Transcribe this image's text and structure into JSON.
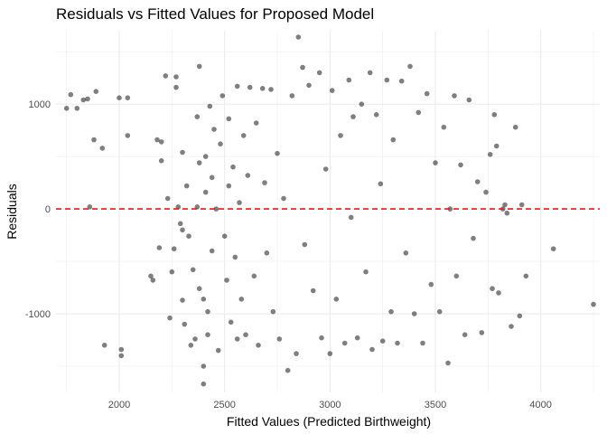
{
  "chart_data": {
    "type": "scatter",
    "title": "Residuals vs Fitted Values for Proposed Model",
    "xlabel": "Fitted Values (Predicted Birthweight)",
    "ylabel": "Residuals",
    "xlim": [
      1700,
      4280
    ],
    "ylim": [
      -1750,
      1700
    ],
    "x_major_ticks": [
      2000,
      2500,
      3000,
      3500,
      4000
    ],
    "x_tick_labels": [
      "2000",
      "2500",
      "3000",
      "3500",
      "4000"
    ],
    "y_major_ticks": [
      -1000,
      0,
      1000
    ],
    "y_tick_labels": [
      "-1000",
      "0",
      "1000"
    ],
    "grid": true,
    "reference_line": {
      "y": 0,
      "style": "dashed",
      "color": "#e41a1c"
    },
    "point_color": "#000000",
    "point_opacity": 0.5,
    "series": [
      {
        "points": [
          [
            1750,
            960
          ],
          [
            1770,
            1090
          ],
          [
            1800,
            960
          ],
          [
            1830,
            1040
          ],
          [
            1850,
            1050
          ],
          [
            1860,
            20
          ],
          [
            1880,
            660
          ],
          [
            1890,
            1120
          ],
          [
            1920,
            580
          ],
          [
            1930,
            -1300
          ],
          [
            2000,
            1060
          ],
          [
            2010,
            -1400
          ],
          [
            2010,
            -1340
          ],
          [
            2040,
            1060
          ],
          [
            2040,
            700
          ],
          [
            2150,
            -640
          ],
          [
            2160,
            -680
          ],
          [
            2180,
            660
          ],
          [
            2190,
            -370
          ],
          [
            2200,
            460
          ],
          [
            2200,
            640
          ],
          [
            2220,
            1270
          ],
          [
            2230,
            100
          ],
          [
            2240,
            -1040
          ],
          [
            2250,
            -600
          ],
          [
            2260,
            -380
          ],
          [
            2270,
            1160
          ],
          [
            2270,
            1260
          ],
          [
            2280,
            20
          ],
          [
            2290,
            -140
          ],
          [
            2300,
            -870
          ],
          [
            2300,
            -200
          ],
          [
            2300,
            540
          ],
          [
            2310,
            -1100
          ],
          [
            2320,
            220
          ],
          [
            2330,
            -260
          ],
          [
            2340,
            -1300
          ],
          [
            2350,
            -580
          ],
          [
            2360,
            -1240
          ],
          [
            2370,
            20
          ],
          [
            2370,
            880
          ],
          [
            2380,
            1360
          ],
          [
            2380,
            -760
          ],
          [
            2380,
            440
          ],
          [
            2400,
            -1670
          ],
          [
            2400,
            -860
          ],
          [
            2400,
            -1500
          ],
          [
            2410,
            160
          ],
          [
            2410,
            500
          ],
          [
            2420,
            -1200
          ],
          [
            2420,
            -980
          ],
          [
            2430,
            980
          ],
          [
            2440,
            300
          ],
          [
            2440,
            -400
          ],
          [
            2450,
            760
          ],
          [
            2460,
            0
          ],
          [
            2470,
            -1350
          ],
          [
            2480,
            620
          ],
          [
            2490,
            1080
          ],
          [
            2500,
            -260
          ],
          [
            2510,
            -680
          ],
          [
            2520,
            860
          ],
          [
            2520,
            220
          ],
          [
            2530,
            -1080
          ],
          [
            2540,
            400
          ],
          [
            2550,
            -460
          ],
          [
            2560,
            1170
          ],
          [
            2560,
            -1240
          ],
          [
            2570,
            60
          ],
          [
            2580,
            -860
          ],
          [
            2590,
            700
          ],
          [
            2600,
            -1200
          ],
          [
            2610,
            320
          ],
          [
            2620,
            1160
          ],
          [
            2640,
            -640
          ],
          [
            2650,
            820
          ],
          [
            2660,
            -1300
          ],
          [
            2680,
            1150
          ],
          [
            2690,
            250
          ],
          [
            2700,
            -420
          ],
          [
            2720,
            1140
          ],
          [
            2730,
            -980
          ],
          [
            2750,
            530
          ],
          [
            2760,
            -1240
          ],
          [
            2780,
            100
          ],
          [
            2800,
            -1540
          ],
          [
            2820,
            1080
          ],
          [
            2840,
            -1380
          ],
          [
            2850,
            1640
          ],
          [
            2870,
            1350
          ],
          [
            2880,
            -340
          ],
          [
            2900,
            1180
          ],
          [
            2920,
            -780
          ],
          [
            2950,
            1300
          ],
          [
            2960,
            -1230
          ],
          [
            2980,
            380
          ],
          [
            3000,
            -1380
          ],
          [
            3010,
            1130
          ],
          [
            3030,
            -860
          ],
          [
            3050,
            700
          ],
          [
            3070,
            -1280
          ],
          [
            3090,
            1230
          ],
          [
            3100,
            -80
          ],
          [
            3110,
            880
          ],
          [
            3130,
            -1230
          ],
          [
            3150,
            1000
          ],
          [
            3170,
            -600
          ],
          [
            3190,
            1300
          ],
          [
            3200,
            -1340
          ],
          [
            3220,
            900
          ],
          [
            3240,
            240
          ],
          [
            3250,
            -1260
          ],
          [
            3270,
            1230
          ],
          [
            3290,
            -980
          ],
          [
            3300,
            660
          ],
          [
            3320,
            -1280
          ],
          [
            3340,
            1220
          ],
          [
            3360,
            -420
          ],
          [
            3380,
            1360
          ],
          [
            3400,
            -1000
          ],
          [
            3420,
            920
          ],
          [
            3440,
            -1280
          ],
          [
            3460,
            1100
          ],
          [
            3480,
            -720
          ],
          [
            3500,
            440
          ],
          [
            3520,
            -980
          ],
          [
            3540,
            780
          ],
          [
            3560,
            -1470
          ],
          [
            3570,
            0
          ],
          [
            3590,
            1080
          ],
          [
            3600,
            -640
          ],
          [
            3620,
            420
          ],
          [
            3640,
            -1200
          ],
          [
            3660,
            1040
          ],
          [
            3680,
            -280
          ],
          [
            3700,
            260
          ],
          [
            3720,
            -1180
          ],
          [
            3740,
            160
          ],
          [
            3760,
            520
          ],
          [
            3770,
            -760
          ],
          [
            3780,
            900
          ],
          [
            3790,
            600
          ],
          [
            3800,
            -800
          ],
          [
            3820,
            0
          ],
          [
            3830,
            40
          ],
          [
            3840,
            -40
          ],
          [
            3860,
            -1120
          ],
          [
            3880,
            780
          ],
          [
            3900,
            -1020
          ],
          [
            3910,
            40
          ],
          [
            3930,
            -640
          ],
          [
            4060,
            -380
          ],
          [
            4250,
            -910
          ]
        ]
      }
    ]
  }
}
